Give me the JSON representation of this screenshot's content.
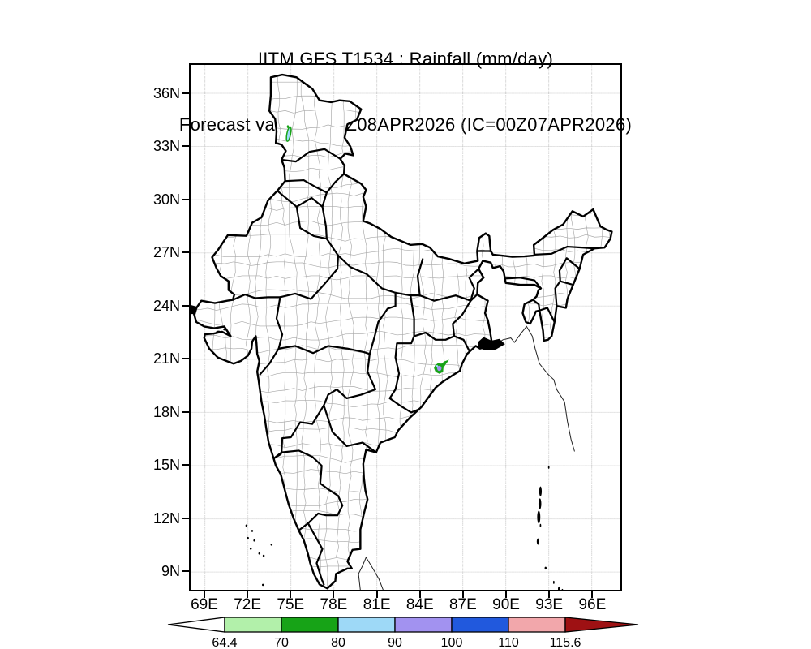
{
  "title": {
    "line1": "IITM GFS T1534 : Rainfall (mm/day)",
    "line2": "Forecast valid for 03Z08APR2026 (IC=00Z07APR2026)"
  },
  "axes": {
    "y_tick_labels": [
      "36N",
      "33N",
      "30N",
      "27N",
      "24N",
      "21N",
      "18N",
      "15N",
      "12N",
      "9N"
    ],
    "x_tick_labels": [
      "69E",
      "72E",
      "75E",
      "78E",
      "81E",
      "84E",
      "87E",
      "90E",
      "93E",
      "96E"
    ]
  },
  "colorbar": {
    "tick_labels": [
      "64.4",
      "70",
      "80",
      "90",
      "100",
      "110",
      "115.6"
    ],
    "segment_colors": [
      "#b2f0aa",
      "#17a317",
      "#9ed9f7",
      "#a292f0",
      "#2159dd",
      "#f2a7ab"
    ],
    "under_arrow_color": "#ffffff",
    "over_arrow_color": "#9e1113",
    "outline_color": "#000000"
  },
  "map_style": {
    "land_color": "#ffffff",
    "state_border_color": "#000000",
    "district_border_color": "#a8a8a8",
    "grid_color": "#999999",
    "neighbor_line_color": "#222222"
  },
  "chart_data": {
    "type": "heatmap",
    "title": "IITM GFS T1534 : Rainfall (mm/day)",
    "subtitle": "Forecast valid for 03Z08APR2026 (IC=00Z07APR2026)",
    "projection": "lat-lon map of India with state and district boundaries",
    "grid": "dotted 3-degree graticule",
    "x_axis": {
      "ticks": [
        69,
        72,
        75,
        78,
        81,
        84,
        87,
        90,
        93,
        96
      ],
      "suffix": "E",
      "range": [
        68,
        98
      ]
    },
    "y_axis": {
      "ticks": [
        36,
        33,
        30,
        27,
        24,
        21,
        18,
        15,
        12,
        9
      ],
      "suffix": "N",
      "range": [
        8,
        37.6
      ]
    },
    "legend_levels_mm_per_day": [
      64.4,
      70,
      80,
      90,
      100,
      110,
      115.6
    ],
    "legend_colors": [
      "#b2f0aa",
      "#17a317",
      "#9ed9f7",
      "#a292f0",
      "#2159dd",
      "#f2a7ab"
    ],
    "rain_cells": [
      {
        "approx_lon": 74.85,
        "approx_lat": 33.7,
        "peak_bin_mm_day": "80-90",
        "appearance": "small elongated streak, light-blue core with green edge (Jammu & Kashmir)"
      },
      {
        "approx_lon": 85.3,
        "approx_lat": 20.5,
        "peak_bin_mm_day": "90-100",
        "appearance": "small blob, purple core with light-blue fleck inside green patch (Odisha)"
      }
    ]
  }
}
